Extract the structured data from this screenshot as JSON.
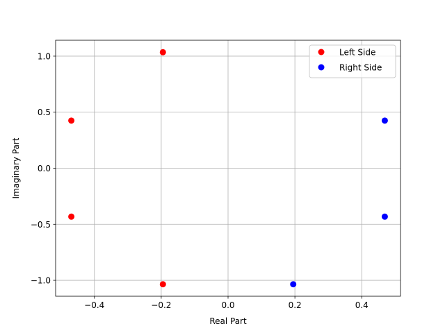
{
  "chart_data": {
    "type": "scatter",
    "title": "",
    "xlabel": "Real Part",
    "ylabel": "Imaginary Part",
    "xlim": [
      -0.516,
      0.516
    ],
    "ylim": [
      -1.142,
      1.142
    ],
    "xticks": [
      -0.4,
      -0.2,
      0.0,
      0.2,
      0.4
    ],
    "xtick_labels": [
      "−0.4",
      "−0.2",
      "0.0",
      "0.2",
      "0.4"
    ],
    "yticks": [
      -1.0,
      -0.5,
      0.0,
      0.5,
      1.0
    ],
    "ytick_labels": [
      "−1.0",
      "−0.5",
      "0.0",
      "0.5",
      "1.0"
    ],
    "grid": true,
    "legend_position": "top-right",
    "series": [
      {
        "name": "Left Side",
        "color": "#ff0000",
        "points": [
          {
            "x": -0.195,
            "y": 1.035
          },
          {
            "x": -0.469,
            "y": 0.425
          },
          {
            "x": -0.469,
            "y": -0.432
          },
          {
            "x": -0.195,
            "y": -1.035
          }
        ]
      },
      {
        "name": "Right Side",
        "color": "#0000ff",
        "points": [
          {
            "x": 0.469,
            "y": 0.425
          },
          {
            "x": 0.469,
            "y": -0.432
          },
          {
            "x": 0.195,
            "y": -1.035
          }
        ]
      }
    ]
  }
}
